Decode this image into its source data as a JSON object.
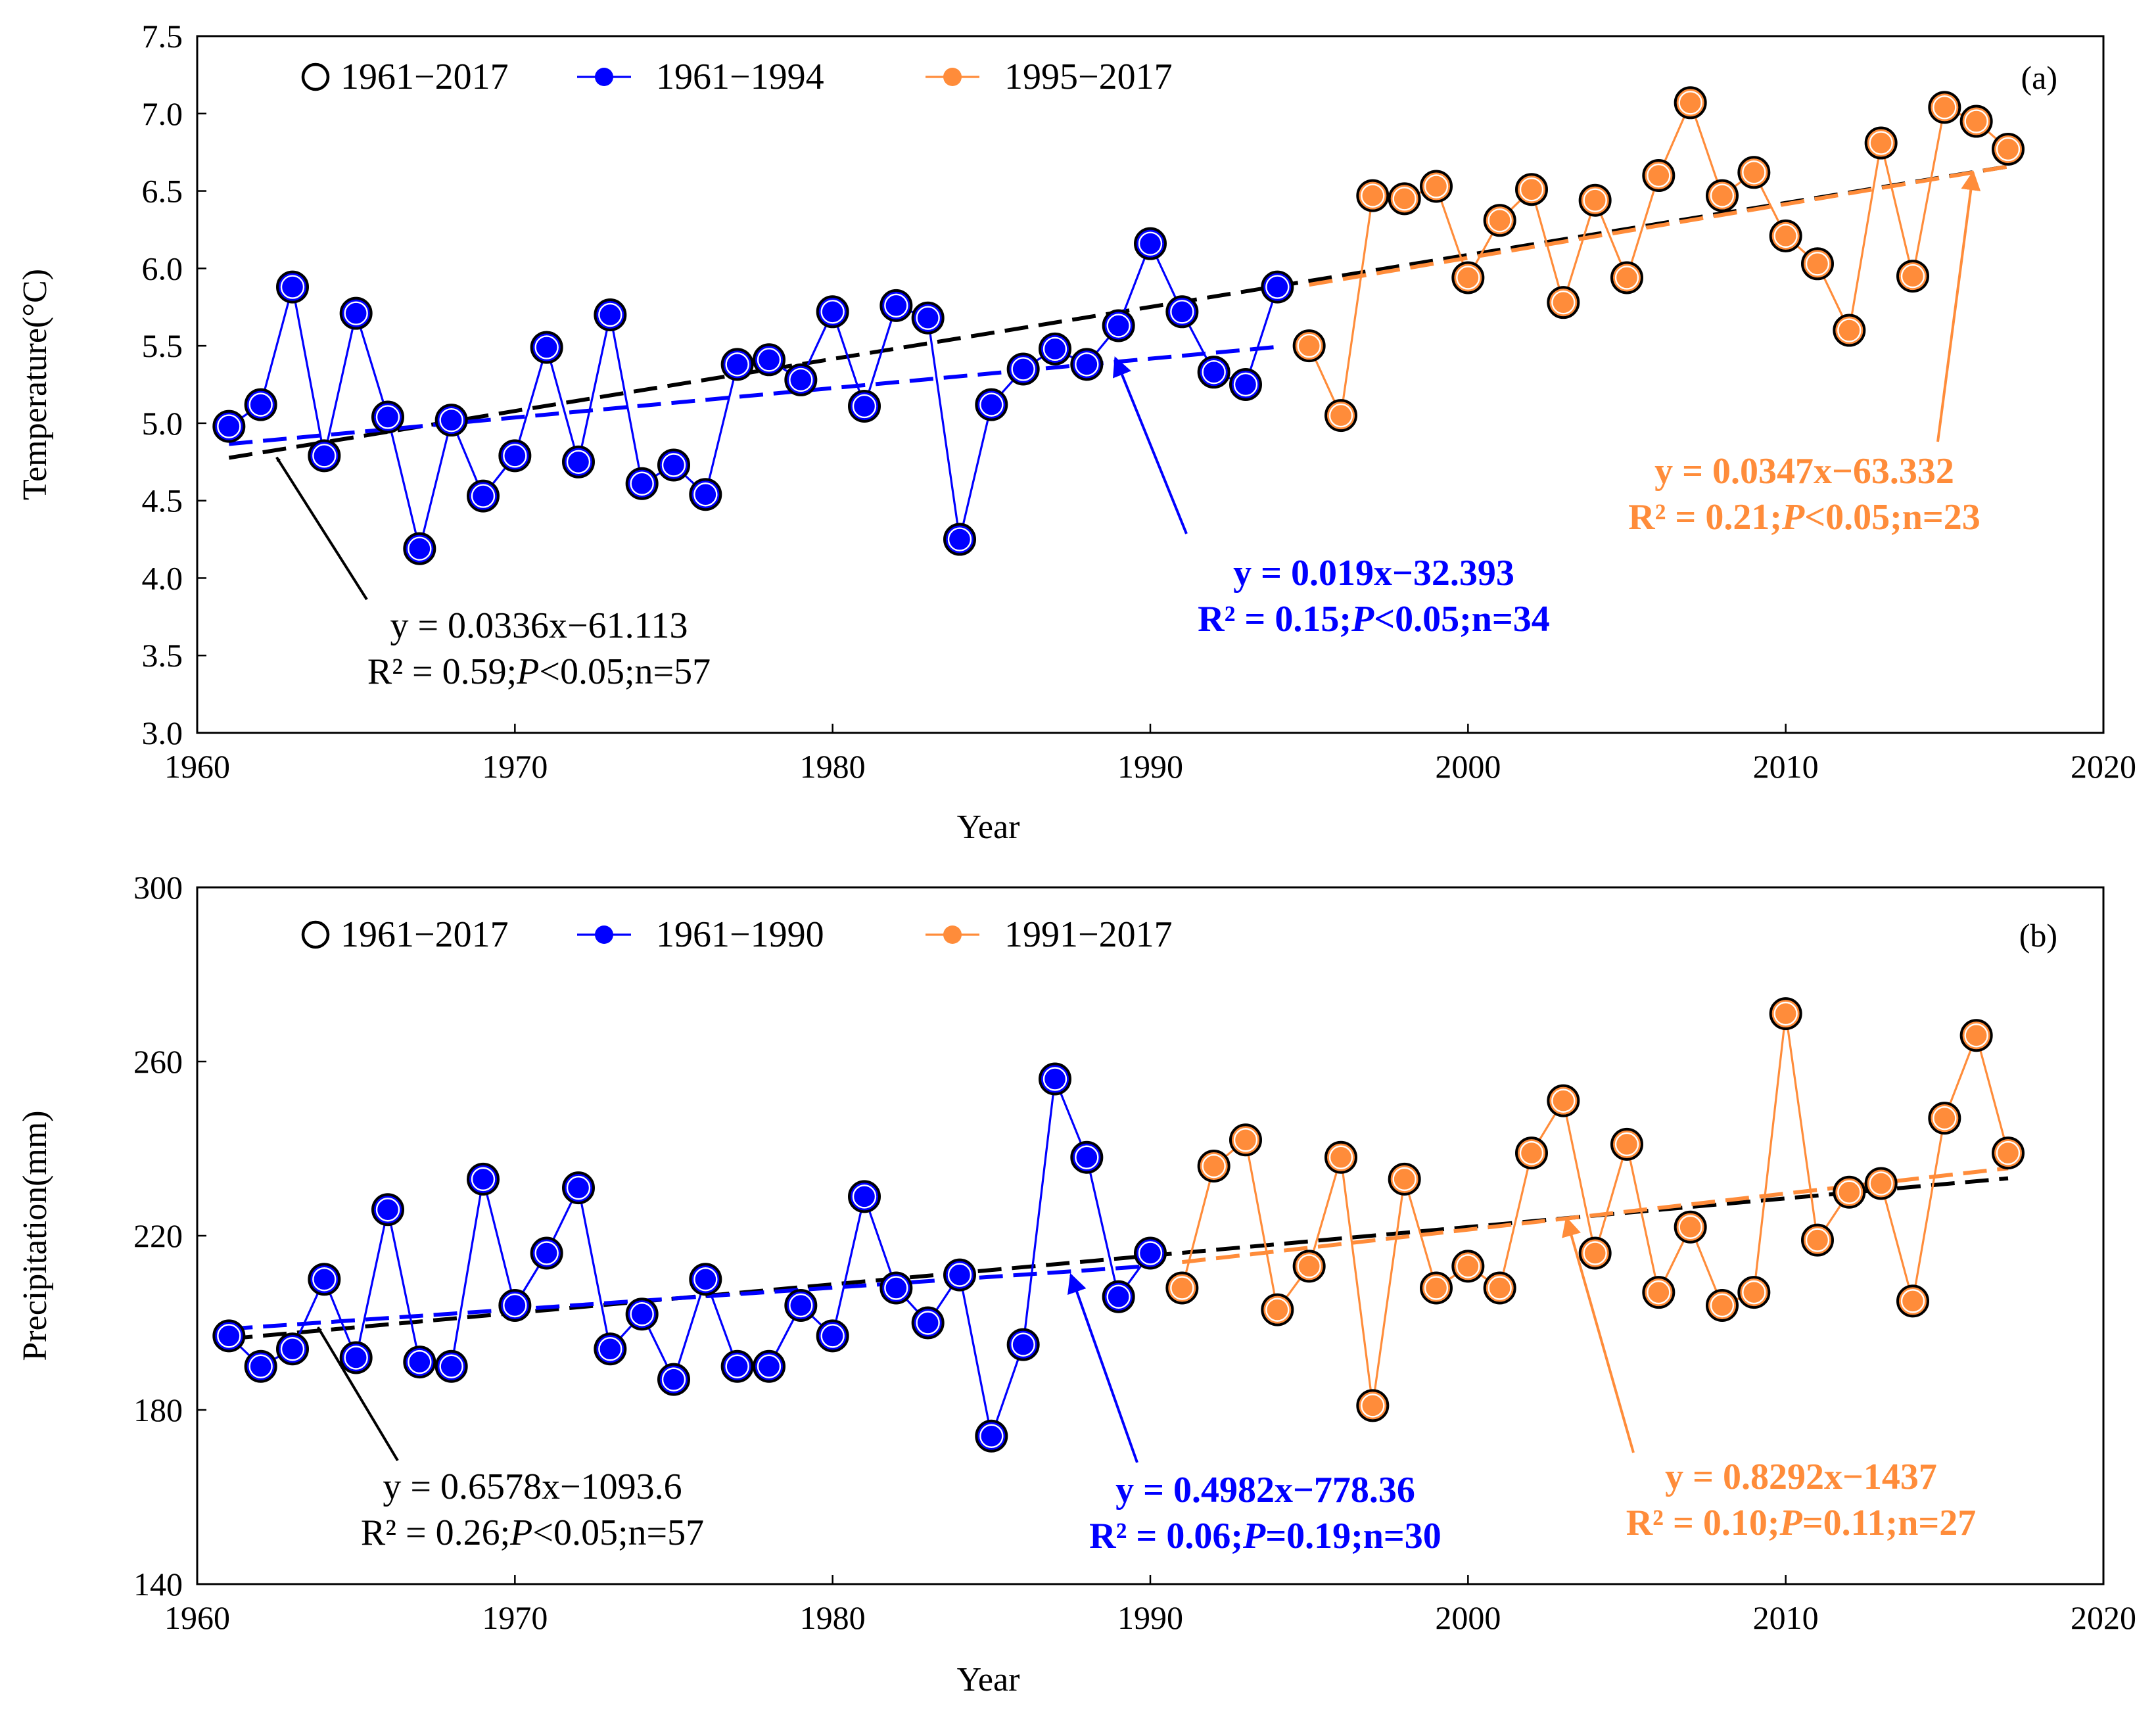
{
  "chart_data": [
    {
      "type": "line",
      "panel_label": "(a)",
      "xlabel": "Year",
      "ylabel": "Temperature(°C)",
      "xlim": [
        1960,
        2020
      ],
      "ylim": [
        3.0,
        7.5
      ],
      "xticks": [
        1960,
        1970,
        1980,
        1990,
        2000,
        2010,
        2020
      ],
      "yticks": [
        3.0,
        3.5,
        4.0,
        4.5,
        5.0,
        5.5,
        6.0,
        6.5,
        7.0,
        7.5
      ],
      "ytick_decimals": 1,
      "legend": {
        "position": "top-left",
        "entries": [
          {
            "label": "1961−2017",
            "style": "hollow-circle",
            "color": "#000000"
          },
          {
            "label": "1961−1994",
            "style": "line-marker",
            "color": "#0000ff"
          },
          {
            "label": "1995−2017",
            "style": "line-marker",
            "color": "#ff8c3a"
          }
        ]
      },
      "series": [
        {
          "name": "1961−1994",
          "color": "#0000ff",
          "x": [
            1961,
            1962,
            1963,
            1964,
            1965,
            1966,
            1967,
            1968,
            1969,
            1970,
            1971,
            1972,
            1973,
            1974,
            1975,
            1976,
            1977,
            1978,
            1979,
            1980,
            1981,
            1982,
            1983,
            1984,
            1985,
            1986,
            1987,
            1988,
            1989,
            1990,
            1991,
            1992,
            1993,
            1994
          ],
          "values": [
            4.98,
            5.12,
            5.88,
            4.79,
            5.71,
            5.04,
            4.19,
            5.02,
            4.53,
            4.79,
            5.49,
            4.75,
            5.7,
            4.61,
            4.73,
            4.54,
            5.38,
            5.41,
            5.28,
            5.72,
            5.11,
            5.76,
            5.68,
            4.25,
            5.12,
            5.35,
            5.48,
            5.38,
            5.63,
            6.16,
            5.72,
            5.33,
            5.25,
            5.88
          ]
        },
        {
          "name": "1995−2017",
          "color": "#ff8c3a",
          "x": [
            1995,
            1996,
            1997,
            1998,
            1999,
            2000,
            2001,
            2002,
            2003,
            2004,
            2005,
            2006,
            2007,
            2008,
            2009,
            2010,
            2011,
            2012,
            2013,
            2014,
            2015,
            2016,
            2017
          ],
          "values": [
            5.5,
            5.05,
            6.47,
            6.45,
            6.53,
            5.94,
            6.31,
            6.51,
            5.78,
            6.44,
            5.94,
            6.6,
            7.07,
            6.47,
            6.62,
            6.21,
            6.03,
            5.6,
            6.81,
            5.95,
            7.04,
            6.95,
            6.77
          ]
        }
      ],
      "trendlines": [
        {
          "name": "1961−2017 trend",
          "color": "#000000",
          "x_range": [
            1961,
            2017
          ],
          "slope": 0.0336,
          "intercept": -61.113
        },
        {
          "name": "1961−1994 trend",
          "color": "#0000ff",
          "x_range": [
            1961,
            1994
          ],
          "slope": 0.019,
          "intercept": -32.393
        },
        {
          "name": "1995−2017 trend",
          "color": "#ff8c3a",
          "x_range": [
            1995,
            2017
          ],
          "slope": 0.0347,
          "intercept": -63.332
        }
      ],
      "annotations": [
        {
          "color": "#000000",
          "bold": false,
          "lines": [
            [
              "y = 0.0336x−61.113"
            ],
            [
              "R² = 0.59;",
              {
                "i": "P"
              },
              "<0.05;n=57"
            ]
          ],
          "arrow_to": [
            1962.5,
            4.78
          ]
        },
        {
          "color": "#0000ff",
          "bold": true,
          "lines": [
            [
              "y = 0.019x−32.393"
            ],
            [
              "R² = 0.15;",
              {
                "i": "P"
              },
              "<0.05;n=34"
            ]
          ],
          "arrow_to": [
            1988.9,
            5.42
          ]
        },
        {
          "color": "#ff8c3a",
          "bold": true,
          "lines": [
            [
              "y = 0.0347x−63.332"
            ],
            [
              "R² = 0.21;",
              {
                "i": "P"
              },
              "<0.05;n=23"
            ]
          ],
          "arrow_to": [
            2015.9,
            6.62
          ]
        }
      ]
    },
    {
      "type": "line",
      "panel_label": "(b)",
      "xlabel": "Year",
      "ylabel": "Precipitation(mm)",
      "xlim": [
        1960,
        2020
      ],
      "ylim": [
        140,
        300
      ],
      "xticks": [
        1960,
        1970,
        1980,
        1990,
        2000,
        2010,
        2020
      ],
      "yticks": [
        140,
        180,
        220,
        260,
        300
      ],
      "ytick_decimals": 0,
      "legend": {
        "position": "top-left",
        "entries": [
          {
            "label": "1961−2017",
            "style": "hollow-circle",
            "color": "#000000"
          },
          {
            "label": "1961−1990",
            "style": "line-marker",
            "color": "#0000ff"
          },
          {
            "label": "1991−2017",
            "style": "line-marker",
            "color": "#ff8c3a"
          }
        ]
      },
      "series": [
        {
          "name": "1961−1990",
          "color": "#0000ff",
          "x": [
            1961,
            1962,
            1963,
            1964,
            1965,
            1966,
            1967,
            1968,
            1969,
            1970,
            1971,
            1972,
            1973,
            1974,
            1975,
            1976,
            1977,
            1978,
            1979,
            1980,
            1981,
            1982,
            1983,
            1984,
            1985,
            1986,
            1987,
            1988,
            1989,
            1990
          ],
          "values": [
            197,
            190,
            194,
            210,
            192,
            226,
            191,
            190,
            233,
            204,
            216,
            231,
            194,
            202,
            187,
            210,
            190,
            190,
            204,
            197,
            229,
            208,
            200,
            211,
            174,
            195,
            256,
            238,
            206,
            216
          ]
        },
        {
          "name": "1991−2017",
          "color": "#ff8c3a",
          "x": [
            1991,
            1992,
            1993,
            1994,
            1995,
            1996,
            1997,
            1998,
            1999,
            2000,
            2001,
            2002,
            2003,
            2004,
            2005,
            2006,
            2007,
            2008,
            2009,
            2010,
            2011,
            2012,
            2013,
            2014,
            2015,
            2016,
            2017
          ],
          "values": [
            208,
            236,
            242,
            203,
            213,
            238,
            181,
            233,
            208,
            213,
            208,
            239,
            251,
            216,
            241,
            207,
            222,
            204,
            207,
            271,
            219,
            230,
            232,
            205,
            247,
            266,
            239
          ]
        }
      ],
      "trendlines": [
        {
          "name": "1961−2017 trend",
          "color": "#000000",
          "x_range": [
            1961,
            2017
          ],
          "slope": 0.6578,
          "intercept": -1093.6
        },
        {
          "name": "1961−1990 trend",
          "color": "#0000ff",
          "x_range": [
            1961,
            1990
          ],
          "slope": 0.4982,
          "intercept": -778.36
        },
        {
          "name": "1991−2017 trend",
          "color": "#ff8c3a",
          "x_range": [
            1991,
            2017
          ],
          "slope": 0.8292,
          "intercept": -1437
        }
      ],
      "annotations": [
        {
          "color": "#000000",
          "bold": false,
          "lines": [
            [
              "y = 0.6578x−1093.6"
            ],
            [
              "R² = 0.26;",
              {
                "i": "P"
              },
              "<0.05;n=57"
            ]
          ],
          "arrow_to": [
            1963.8,
            199
          ]
        },
        {
          "color": "#0000ff",
          "bold": true,
          "lines": [
            [
              "y = 0.4982x−778.36"
            ],
            [
              "R² = 0.06;",
              {
                "i": "P"
              },
              "=0.19;n=30"
            ]
          ],
          "arrow_to": [
            1987.5,
            211
          ]
        },
        {
          "color": "#ff8c3a",
          "bold": true,
          "lines": [
            [
              "y = 0.8292x−1437"
            ],
            [
              "R² = 0.10;",
              {
                "i": "P"
              },
              "=0.11;n=27"
            ]
          ],
          "arrow_to": [
            2003.1,
            224
          ]
        }
      ]
    }
  ]
}
